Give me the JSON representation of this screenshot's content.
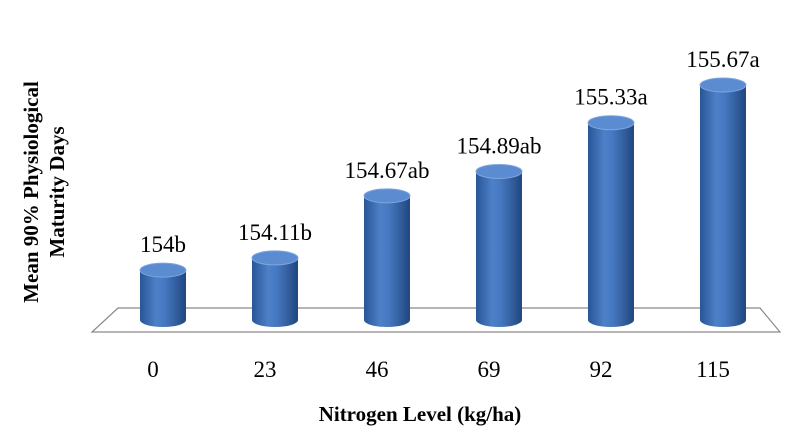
{
  "chart_data": {
    "type": "bar",
    "style": "3d-cylinder",
    "categories": [
      "0",
      "23",
      "46",
      "69",
      "92",
      "115"
    ],
    "values": [
      154,
      154.11,
      154.67,
      154.89,
      155.33,
      155.67
    ],
    "data_labels": [
      "154b",
      "154.11b",
      "154.67ab",
      "154.89ab",
      "155.33a",
      "155.67a"
    ],
    "xlabel": "Nitrogen Level (kg/ha)",
    "ylabel": [
      "Mean 90% Physiological",
      "Maturity Days"
    ],
    "grid": false,
    "legend": "none",
    "colors": {
      "bar_body": "#3c6eb4",
      "bar_light": "#6f9ad6",
      "bar_dark": "#244a86",
      "bar_top": "#5b8bd0",
      "floor": "#ffffff",
      "floor_edge": "#8a8a8a"
    }
  }
}
